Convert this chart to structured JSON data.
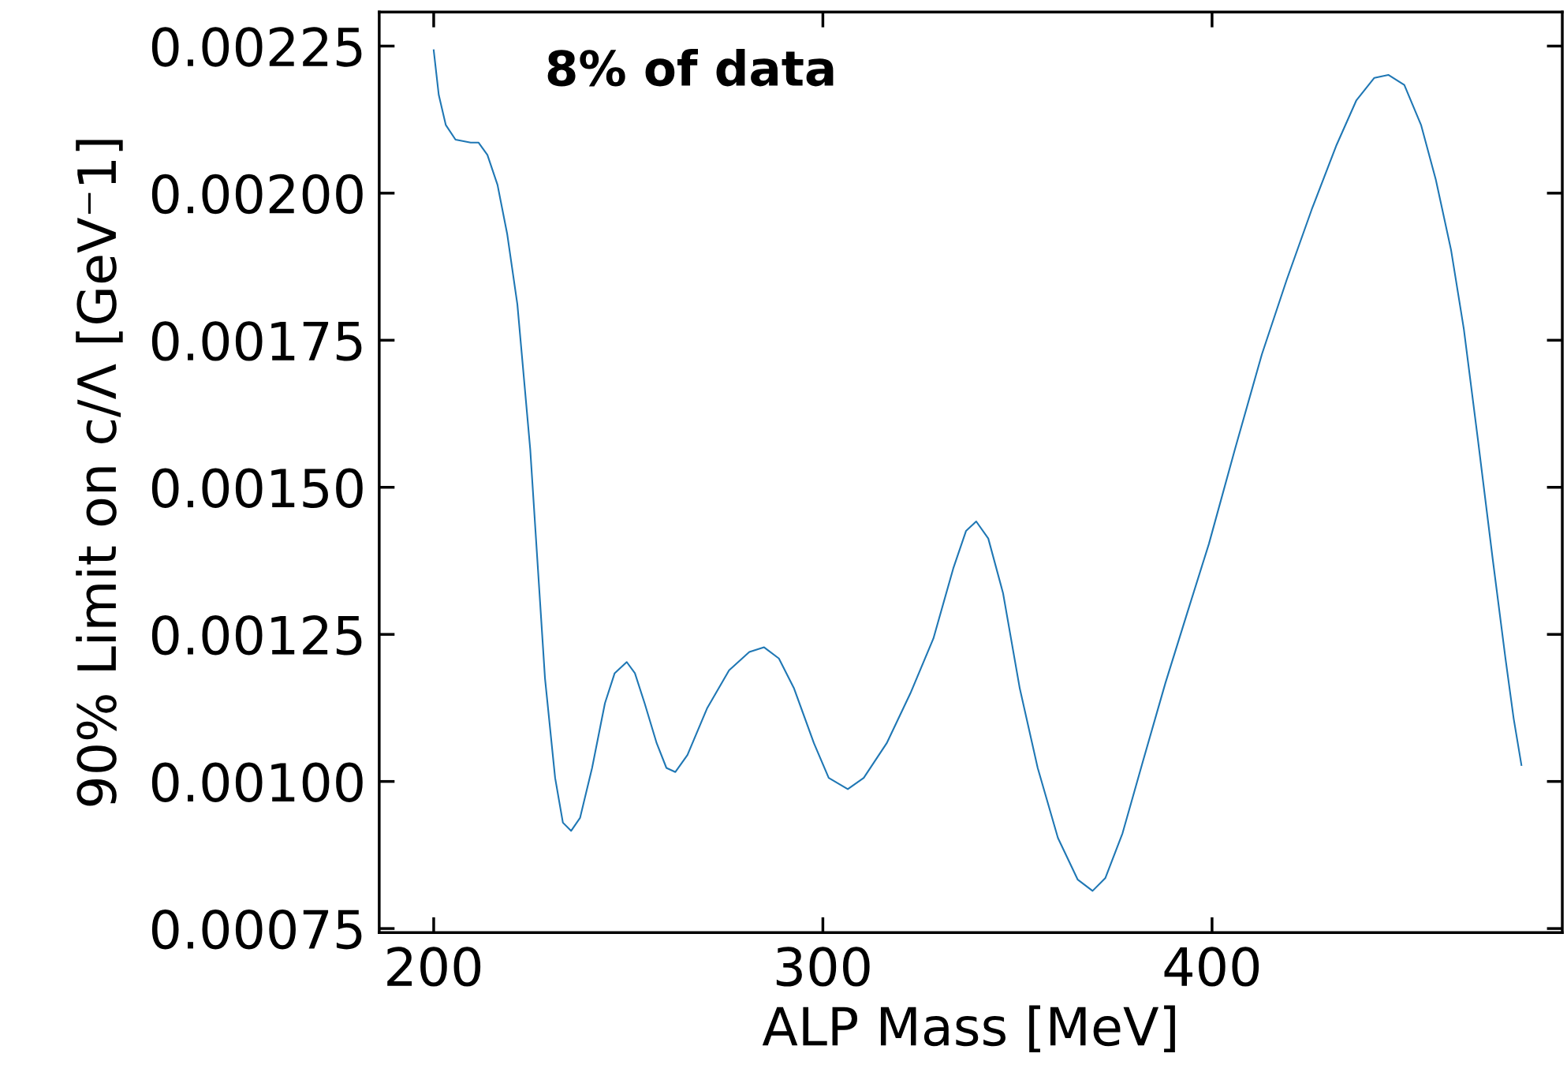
{
  "chart_data": {
    "type": "line",
    "xlabel": "ALP Mass [MeV]",
    "ylabel": "90% Limit on c/Λ [GeV⁻1]",
    "annotations": [
      "8% of data"
    ],
    "x": [
      200,
      201.3,
      203.1,
      205.6,
      209.5,
      211.5,
      213.8,
      216.4,
      218.9,
      221.5,
      224.8,
      228.6,
      231.2,
      233.2,
      235.3,
      237.6,
      240.7,
      244.0,
      246.5,
      249.6,
      251.7,
      254.2,
      257.3,
      259.8,
      262.1,
      265.2,
      270.3,
      275.9,
      281.1,
      284.9,
      288.7,
      292.6,
      297.7,
      301.5,
      306.4,
      310.5,
      316.4,
      322.5,
      328.4,
      333.5,
      336.8,
      339.4,
      342.5,
      346.3,
      350.6,
      355.2,
      360.4,
      365.5,
      369.3,
      372.6,
      377.0,
      382.1,
      388.0,
      393.6,
      399.2,
      405.9,
      412.8,
      419.2,
      425.6,
      432.0,
      437.1,
      441.7,
      445.3,
      449.4,
      453.7,
      457.5,
      461.4,
      464.7,
      468.3,
      472.1,
      475.4,
      477.5,
      479.5
    ],
    "series": [
      {
        "color": "#1f77b4",
        "values": [
          0.002243,
          0.002167,
          0.002116,
          0.002091,
          0.002086,
          0.002086,
          0.002065,
          0.002014,
          0.00193,
          0.001811,
          0.001565,
          0.001175,
          0.001006,
          0.00093,
          0.000916,
          0.000938,
          0.001023,
          0.001133,
          0.001184,
          0.001203,
          0.001184,
          0.001133,
          0.001065,
          0.001023,
          0.001016,
          0.001045,
          0.001125,
          0.001189,
          0.00122,
          0.001228,
          0.001209,
          0.001158,
          0.001065,
          0.001006,
          0.000987,
          0.001006,
          0.001065,
          0.00115,
          0.001243,
          0.001362,
          0.001426,
          0.001442,
          0.001413,
          0.00132,
          0.001158,
          0.001023,
          0.000904,
          0.000833,
          0.000814,
          0.000836,
          0.000912,
          0.001031,
          0.001167,
          0.001286,
          0.001404,
          0.001565,
          0.001726,
          0.001853,
          0.001972,
          0.002082,
          0.002158,
          0.002196,
          0.002201,
          0.002184,
          0.002116,
          0.002023,
          0.001904,
          0.001769,
          0.001582,
          0.001379,
          0.001209,
          0.001107,
          0.001028
        ]
      }
    ],
    "xlim": [
      186,
      490
    ],
    "ylim": [
      0.000743,
      0.002308
    ],
    "xticks": [
      200,
      300,
      400
    ],
    "yticks": [
      {
        "value": 0.00075,
        "label": "0.00075"
      },
      {
        "value": 0.001,
        "label": "0.00100"
      },
      {
        "value": 0.00125,
        "label": "0.00125"
      },
      {
        "value": 0.0015,
        "label": "0.00150"
      },
      {
        "value": 0.00175,
        "label": "0.00175"
      },
      {
        "value": 0.002,
        "label": "0.00200"
      },
      {
        "value": 0.00225,
        "label": "0.00225"
      }
    ],
    "grid": false,
    "legend": false
  }
}
